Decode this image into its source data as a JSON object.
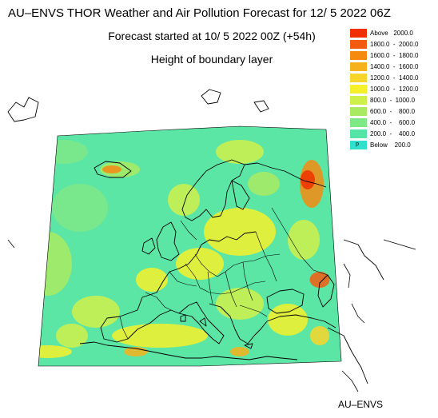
{
  "header": {
    "title": "AU–ENVS THOR Weather and Air Pollution Forecast for 12/ 5 2022  06Z",
    "forecast_start": "Forecast started at 10/ 5 2022  00Z (+54h)",
    "variable": "Height of boundary layer"
  },
  "legend": {
    "items": [
      {
        "label": "Above   2000.0",
        "color": "#f03000"
      },
      {
        "label": "1800.0  -  2000.0",
        "color": "#f25a10"
      },
      {
        "label": "1600.0  -  1800.0",
        "color": "#f58a10"
      },
      {
        "label": "1400.0  -  1600.0",
        "color": "#f6b21c"
      },
      {
        "label": "1200.0  -  1400.0",
        "color": "#f8d52a"
      },
      {
        "label": "1000.0  -  1200.0",
        "color": "#f6f02a"
      },
      {
        "label": "800.0  -  1000.0",
        "color": "#cff04a"
      },
      {
        "label": "600.0  -    800.0",
        "color": "#a9ea62"
      },
      {
        "label": "400.0  -    600.0",
        "color": "#7ee887"
      },
      {
        "label": "200.0  -    400.0",
        "color": "#55e4a8"
      },
      {
        "label": "Below    200.0",
        "color": "#2fe0cd",
        "mark": "p"
      }
    ]
  },
  "map": {
    "background_color": "#5ce6a6",
    "coast_color": "#000000"
  },
  "footer": {
    "credit": "AU–ENVS"
  }
}
